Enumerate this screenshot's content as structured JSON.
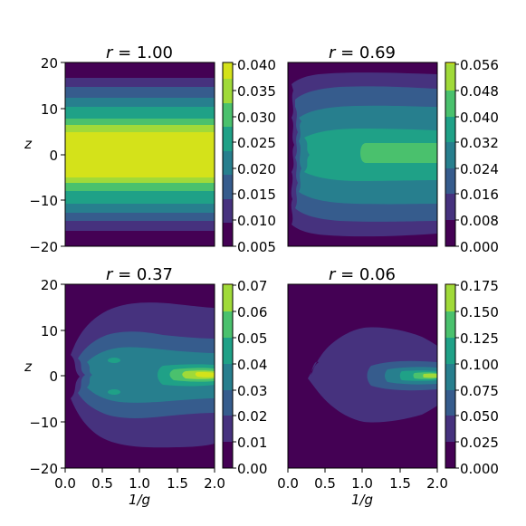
{
  "chart_data": [
    {
      "type": "heatmap",
      "title_var": "r",
      "title_eq": " = 1.00",
      "xlim": [
        0.0,
        2.0
      ],
      "ylim": [
        -20,
        20
      ],
      "xticks": [],
      "yticks": [
        "20",
        "10",
        "0",
        "−10",
        "−20"
      ],
      "xlabel": "",
      "ylabel": "z",
      "colorbar_ticks": [
        "0.040",
        "0.035",
        "0.030",
        "0.025",
        "0.020",
        "0.015",
        "0.010",
        "0.005"
      ],
      "levels": [
        0.005,
        0.01,
        0.015,
        0.02,
        0.025,
        0.03,
        0.035,
        0.04
      ]
    },
    {
      "type": "heatmap",
      "title_var": "r",
      "title_eq": " = 0.69",
      "xlim": [
        0.0,
        2.0
      ],
      "ylim": [
        -20,
        20
      ],
      "xticks": [],
      "yticks": [],
      "xlabel": "",
      "ylabel": "",
      "colorbar_ticks": [
        "0.056",
        "0.048",
        "0.040",
        "0.032",
        "0.024",
        "0.016",
        "0.008",
        "0.000"
      ],
      "levels": [
        0.0,
        0.008,
        0.016,
        0.024,
        0.032,
        0.04,
        0.048,
        0.056
      ]
    },
    {
      "type": "heatmap",
      "title_var": "r",
      "title_eq": " = 0.37",
      "xlim": [
        0.0,
        2.0
      ],
      "ylim": [
        -20,
        20
      ],
      "xticks": [
        "0.0",
        "0.5",
        "1.0",
        "1.5",
        "2.0"
      ],
      "yticks": [
        "20",
        "10",
        "0",
        "−10",
        "−20"
      ],
      "xlabel": "1/g",
      "ylabel": "z",
      "colorbar_ticks": [
        "0.07",
        "0.06",
        "0.05",
        "0.04",
        "0.03",
        "0.02",
        "0.01",
        "0.00"
      ],
      "levels": [
        0.0,
        0.01,
        0.02,
        0.03,
        0.04,
        0.05,
        0.06,
        0.07
      ]
    },
    {
      "type": "heatmap",
      "title_var": "r",
      "title_eq": " = 0.06",
      "xlim": [
        0.0,
        2.0
      ],
      "ylim": [
        -20,
        20
      ],
      "xticks": [
        "0.0",
        "0.5",
        "1.0",
        "1.5",
        "2.0"
      ],
      "yticks": [],
      "xlabel": "1/g",
      "ylabel": "",
      "colorbar_ticks": [
        "0.175",
        "0.150",
        "0.125",
        "0.100",
        "0.075",
        "0.050",
        "0.025",
        "0.000"
      ],
      "levels": [
        0.0,
        0.025,
        0.05,
        0.075,
        0.1,
        0.125,
        0.15,
        0.175
      ]
    }
  ],
  "colormap": [
    "#440154",
    "#46327e",
    "#365c8d",
    "#277f8e",
    "#1fa187",
    "#4ac16d",
    "#a0da39",
    "#d4e21a"
  ]
}
